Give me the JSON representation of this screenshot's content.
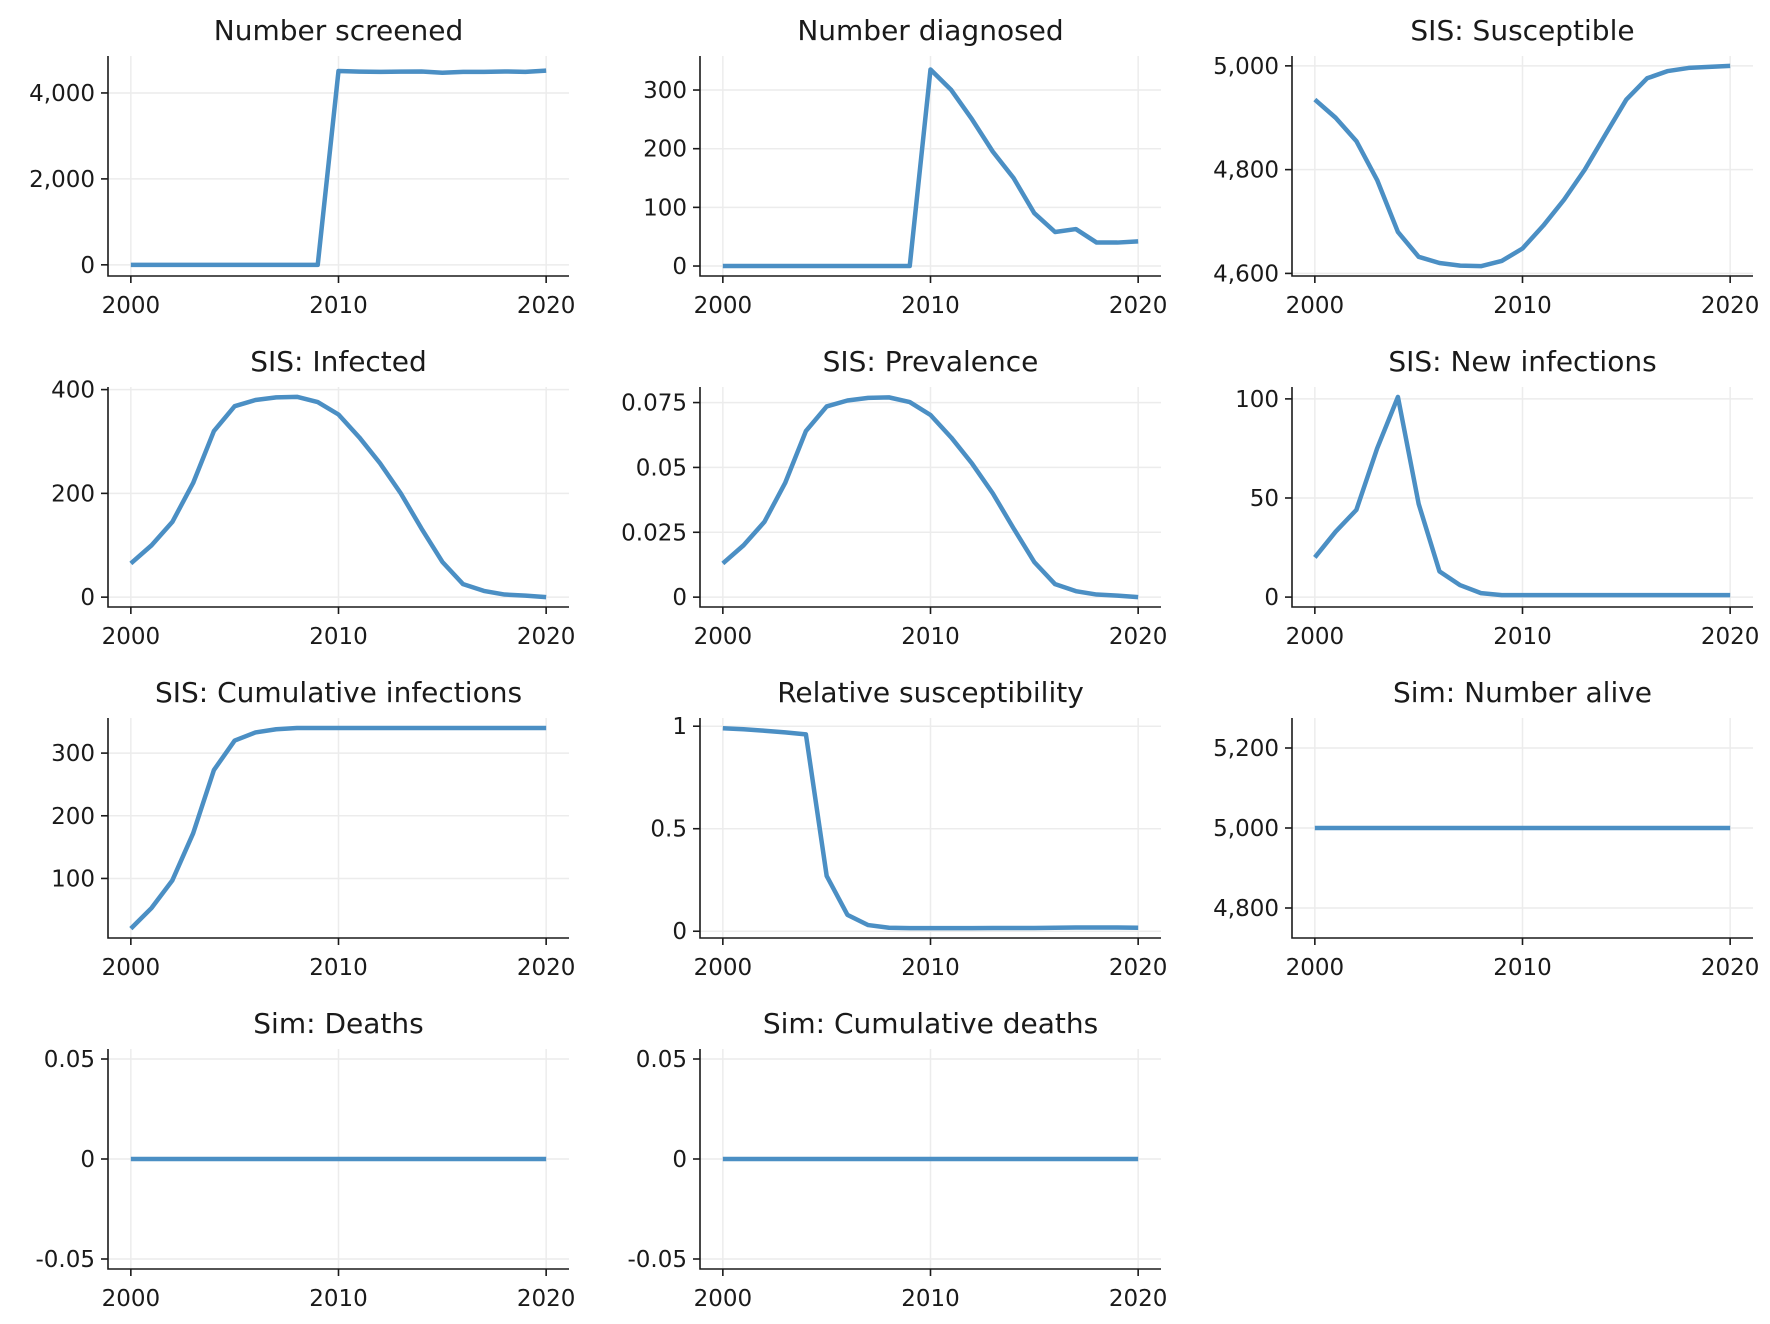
{
  "colors": {
    "series": "#4b8fc4"
  },
  "chart_data": [
    {
      "type": "line",
      "title": "Number screened",
      "x": [
        2000,
        2001,
        2002,
        2003,
        2004,
        2005,
        2006,
        2007,
        2008,
        2009,
        2010,
        2011,
        2012,
        2013,
        2014,
        2015,
        2016,
        2017,
        2018,
        2019,
        2020
      ],
      "values": [
        0,
        0,
        0,
        0,
        0,
        0,
        0,
        0,
        0,
        0,
        4510,
        4495,
        4490,
        4495,
        4500,
        4470,
        4490,
        4490,
        4500,
        4490,
        4520
      ],
      "xlim": [
        1998.9,
        2021.1
      ],
      "ylim": [
        -260,
        4860
      ],
      "xticks": [
        2000,
        2010,
        2020
      ],
      "xtick_labels": [
        "2000",
        "2010",
        "2020"
      ],
      "yticks": [
        0,
        2000,
        4000
      ],
      "ytick_labels": [
        "0",
        "2,000",
        "4,000"
      ]
    },
    {
      "type": "line",
      "title": "Number diagnosed",
      "x": [
        2000,
        2001,
        2002,
        2003,
        2004,
        2005,
        2006,
        2007,
        2008,
        2009,
        2010,
        2011,
        2012,
        2013,
        2014,
        2015,
        2016,
        2017,
        2018,
        2019,
        2020
      ],
      "values": [
        0,
        0,
        0,
        0,
        0,
        0,
        0,
        0,
        0,
        0,
        335,
        300,
        250,
        195,
        150,
        90,
        58,
        63,
        40,
        40,
        42
      ],
      "xlim": [
        1998.9,
        2021.1
      ],
      "ylim": [
        -17,
        358
      ],
      "xticks": [
        2000,
        2010,
        2020
      ],
      "xtick_labels": [
        "2000",
        "2010",
        "2020"
      ],
      "yticks": [
        0,
        100,
        200,
        300
      ],
      "ytick_labels": [
        "0",
        "100",
        "200",
        "300"
      ]
    },
    {
      "type": "line",
      "title": "SIS: Susceptible",
      "x": [
        2000,
        2001,
        2002,
        2003,
        2004,
        2005,
        2006,
        2007,
        2008,
        2009,
        2010,
        2011,
        2012,
        2013,
        2014,
        2015,
        2016,
        2017,
        2018,
        2019,
        2020
      ],
      "values": [
        4935,
        4900,
        4855,
        4780,
        4680,
        4632,
        4620,
        4615,
        4614,
        4624,
        4648,
        4692,
        4742,
        4800,
        4868,
        4935,
        4976,
        4990,
        4996,
        4998,
        5000
      ],
      "xlim": [
        1998.9,
        2021.1
      ],
      "ylim": [
        4595,
        5019
      ],
      "xticks": [
        2000,
        2010,
        2020
      ],
      "xtick_labels": [
        "2000",
        "2010",
        "2020"
      ],
      "yticks": [
        4600,
        4800,
        5000
      ],
      "ytick_labels": [
        "4,600",
        "4,800",
        "5,000"
      ]
    },
    {
      "type": "line",
      "title": "SIS: Infected",
      "x": [
        2000,
        2001,
        2002,
        2003,
        2004,
        2005,
        2006,
        2007,
        2008,
        2009,
        2010,
        2011,
        2012,
        2013,
        2014,
        2015,
        2016,
        2017,
        2018,
        2019,
        2020
      ],
      "values": [
        65,
        100,
        145,
        220,
        320,
        368,
        380,
        385,
        386,
        376,
        352,
        308,
        258,
        200,
        132,
        68,
        25,
        12,
        5,
        3,
        0
      ],
      "xlim": [
        1998.9,
        2021.1
      ],
      "ylim": [
        -19,
        405
      ],
      "xticks": [
        2000,
        2010,
        2020
      ],
      "xtick_labels": [
        "2000",
        "2010",
        "2020"
      ],
      "yticks": [
        0,
        200,
        400
      ],
      "ytick_labels": [
        "0",
        "200",
        "400"
      ]
    },
    {
      "type": "line",
      "title": "SIS: Prevalence",
      "x": [
        2000,
        2001,
        2002,
        2003,
        2004,
        2005,
        2006,
        2007,
        2008,
        2009,
        2010,
        2011,
        2012,
        2013,
        2014,
        2015,
        2016,
        2017,
        2018,
        2019,
        2020
      ],
      "values": [
        0.013,
        0.02,
        0.029,
        0.044,
        0.064,
        0.0735,
        0.0758,
        0.0768,
        0.077,
        0.0752,
        0.0702,
        0.0615,
        0.0515,
        0.04,
        0.0265,
        0.0135,
        0.005,
        0.0023,
        0.001,
        0.0006,
        0
      ],
      "xlim": [
        1998.9,
        2021.1
      ],
      "ylim": [
        -0.0038,
        0.081
      ],
      "xticks": [
        2000,
        2010,
        2020
      ],
      "xtick_labels": [
        "2000",
        "2010",
        "2020"
      ],
      "yticks": [
        0,
        0.025,
        0.05,
        0.075
      ],
      "ytick_labels": [
        "0",
        "0.025",
        "0.05",
        "0.075"
      ]
    },
    {
      "type": "line",
      "title": "SIS: New infections",
      "x": [
        2000,
        2001,
        2002,
        2003,
        2004,
        2005,
        2006,
        2007,
        2008,
        2009,
        2010,
        2011,
        2012,
        2013,
        2014,
        2015,
        2016,
        2017,
        2018,
        2019,
        2020
      ],
      "values": [
        20,
        33,
        44,
        75,
        101,
        47,
        13,
        6,
        2,
        1,
        1,
        1,
        1,
        1,
        1,
        1,
        1,
        1,
        1,
        1,
        1
      ],
      "xlim": [
        1998.9,
        2021.1
      ],
      "ylim": [
        -5,
        106
      ],
      "xticks": [
        2000,
        2010,
        2020
      ],
      "xtick_labels": [
        "2000",
        "2010",
        "2020"
      ],
      "yticks": [
        0,
        50,
        100
      ],
      "ytick_labels": [
        "0",
        "50",
        "100"
      ]
    },
    {
      "type": "line",
      "title": "SIS: Cumulative infections",
      "x": [
        2000,
        2001,
        2002,
        2003,
        2004,
        2005,
        2006,
        2007,
        2008,
        2009,
        2010,
        2011,
        2012,
        2013,
        2014,
        2015,
        2016,
        2017,
        2018,
        2019,
        2020
      ],
      "values": [
        20,
        53,
        97,
        172,
        273,
        320,
        333,
        338,
        340,
        340,
        340,
        340,
        340,
        340,
        340,
        340,
        340,
        340,
        340,
        340,
        340
      ],
      "xlim": [
        1998.9,
        2021.1
      ],
      "ylim": [
        5,
        356
      ],
      "xticks": [
        2000,
        2010,
        2020
      ],
      "xtick_labels": [
        "2000",
        "2010",
        "2020"
      ],
      "yticks": [
        100,
        200,
        300
      ],
      "ytick_labels": [
        "100",
        "200",
        "300"
      ]
    },
    {
      "type": "line",
      "title": "Relative susceptibility",
      "x": [
        2000,
        2001,
        2002,
        2003,
        2004,
        2005,
        2006,
        2007,
        2008,
        2009,
        2010,
        2011,
        2012,
        2013,
        2014,
        2015,
        2016,
        2017,
        2018,
        2019,
        2020
      ],
      "values": [
        0.99,
        0.985,
        0.978,
        0.97,
        0.96,
        0.27,
        0.08,
        0.03,
        0.017,
        0.015,
        0.015,
        0.015,
        0.015,
        0.016,
        0.016,
        0.016,
        0.017,
        0.018,
        0.018,
        0.018,
        0.017
      ],
      "xlim": [
        1998.9,
        2021.1
      ],
      "ylim": [
        -0.033,
        1.04
      ],
      "xticks": [
        2000,
        2010,
        2020
      ],
      "xtick_labels": [
        "2000",
        "2010",
        "2020"
      ],
      "yticks": [
        0,
        0.5,
        1
      ],
      "ytick_labels": [
        "0",
        "0.5",
        "1"
      ]
    },
    {
      "type": "line",
      "title": "Sim: Number alive",
      "x": [
        2000,
        2001,
        2002,
        2003,
        2004,
        2005,
        2006,
        2007,
        2008,
        2009,
        2010,
        2011,
        2012,
        2013,
        2014,
        2015,
        2016,
        2017,
        2018,
        2019,
        2020
      ],
      "values": [
        5000,
        5000,
        5000,
        5000,
        5000,
        5000,
        5000,
        5000,
        5000,
        5000,
        5000,
        5000,
        5000,
        5000,
        5000,
        5000,
        5000,
        5000,
        5000,
        5000,
        5000
      ],
      "xlim": [
        1998.9,
        2021.1
      ],
      "ylim": [
        4725,
        5275
      ],
      "xticks": [
        2000,
        2010,
        2020
      ],
      "xtick_labels": [
        "2000",
        "2010",
        "2020"
      ],
      "yticks": [
        4800,
        5000,
        5200
      ],
      "ytick_labels": [
        "4,800",
        "5,000",
        "5,200"
      ]
    },
    {
      "type": "line",
      "title": "Sim: Deaths",
      "x": [
        2000,
        2001,
        2002,
        2003,
        2004,
        2005,
        2006,
        2007,
        2008,
        2009,
        2010,
        2011,
        2012,
        2013,
        2014,
        2015,
        2016,
        2017,
        2018,
        2019,
        2020
      ],
      "values": [
        0,
        0,
        0,
        0,
        0,
        0,
        0,
        0,
        0,
        0,
        0,
        0,
        0,
        0,
        0,
        0,
        0,
        0,
        0,
        0,
        0
      ],
      "xlim": [
        1998.9,
        2021.1
      ],
      "ylim": [
        -0.055,
        0.055
      ],
      "xticks": [
        2000,
        2010,
        2020
      ],
      "xtick_labels": [
        "2000",
        "2010",
        "2020"
      ],
      "yticks": [
        -0.05,
        0,
        0.05
      ],
      "ytick_labels": [
        "-0.05",
        "0",
        "0.05"
      ]
    },
    {
      "type": "line",
      "title": "Sim: Cumulative deaths",
      "x": [
        2000,
        2001,
        2002,
        2003,
        2004,
        2005,
        2006,
        2007,
        2008,
        2009,
        2010,
        2011,
        2012,
        2013,
        2014,
        2015,
        2016,
        2017,
        2018,
        2019,
        2020
      ],
      "values": [
        0,
        0,
        0,
        0,
        0,
        0,
        0,
        0,
        0,
        0,
        0,
        0,
        0,
        0,
        0,
        0,
        0,
        0,
        0,
        0,
        0
      ],
      "xlim": [
        1998.9,
        2021.1
      ],
      "ylim": [
        -0.055,
        0.055
      ],
      "xticks": [
        2000,
        2010,
        2020
      ],
      "xtick_labels": [
        "2000",
        "2010",
        "2020"
      ],
      "yticks": [
        -0.05,
        0,
        0.05
      ],
      "ytick_labels": [
        "-0.05",
        "0",
        "0.05"
      ]
    }
  ]
}
